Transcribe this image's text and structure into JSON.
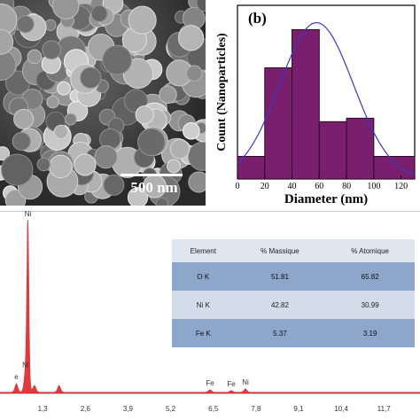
{
  "sem": {
    "scale_label": "500 nm"
  },
  "chart_data": [
    {
      "type": "bar",
      "panel_label": "(b)",
      "xlabel": "Diameter (nm)",
      "ylabel": "Count (Nanoparticles)",
      "x_ticks": [
        0,
        20,
        40,
        60,
        80,
        100,
        120
      ],
      "xlim": [
        0,
        130
      ],
      "ylim": [
        0,
        10
      ],
      "bins": [
        {
          "from": 0,
          "to": 20,
          "count": 1.3
        },
        {
          "from": 20,
          "to": 40,
          "count": 6.4
        },
        {
          "from": 40,
          "to": 60,
          "count": 8.6
        },
        {
          "from": 60,
          "to": 80,
          "count": 3.3
        },
        {
          "from": 80,
          "to": 100,
          "count": 3.5
        },
        {
          "from": 100,
          "to": 130,
          "count": 1.3
        }
      ],
      "fit_curve": {
        "type": "gaussian",
        "mean": 58,
        "sd": 27,
        "peak": 9.0
      },
      "bar_color": "#7a1f6e",
      "curve_color": "#3a3ac8"
    },
    {
      "type": "line",
      "x_ticks": [
        "1,3",
        "2,6",
        "3,9",
        "5,2",
        "6,5",
        "7,8",
        "9,1",
        "10,4",
        "11,7"
      ],
      "xlim": [
        0,
        12.8
      ],
      "peaks": [
        {
          "x": 0.5,
          "y": 0.05,
          "label": "e"
        },
        {
          "x": 0.85,
          "y": 0.06
        },
        {
          "x": 1.05,
          "y": 0.04
        },
        {
          "x": 1.8,
          "y": 0.04
        },
        {
          "x": 0.85,
          "y": 1.0,
          "label": "Ni"
        },
        {
          "x": 0.78,
          "y": 0.12,
          "label": "Ni"
        },
        {
          "x": 6.4,
          "y": 0.015,
          "label": "Fe"
        },
        {
          "x": 7.05,
          "y": 0.01,
          "label": "Fe"
        },
        {
          "x": 7.48,
          "y": 0.02,
          "label": "Ni"
        }
      ],
      "series_color": "#d7191c",
      "table": {
        "headers": [
          "Element",
          "% Massique",
          "% Atomique"
        ],
        "rows": [
          [
            "O K",
            "51.81",
            "65.82"
          ],
          [
            "Ni K",
            "42.82",
            "30.99"
          ],
          [
            "Fe K",
            "5.37",
            "3.19"
          ]
        ]
      }
    }
  ]
}
